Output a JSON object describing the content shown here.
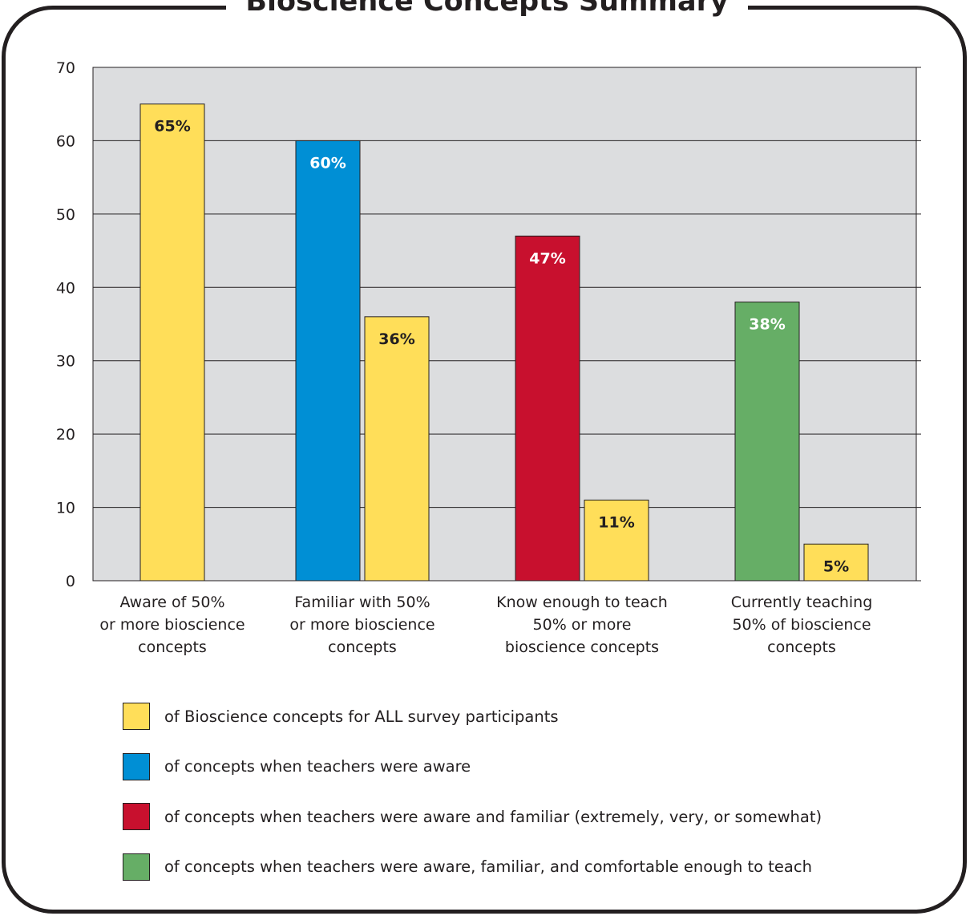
{
  "chart_data": {
    "type": "bar",
    "title": "Bioscience Concepts Summary",
    "xlabel": "",
    "ylabel": "",
    "ylim": [
      0,
      70
    ],
    "yticks": [
      0,
      10,
      20,
      30,
      40,
      50,
      60,
      70
    ],
    "grid": true,
    "categories": [
      [
        "Aware of 50%",
        "or more bioscience",
        "concepts"
      ],
      [
        "Familiar with 50%",
        "or more bioscience",
        "concepts"
      ],
      [
        "Know enough to teach",
        "50% or more",
        "bioscience concepts"
      ],
      [
        "Currently teaching",
        "50% of bioscience",
        "concepts"
      ]
    ],
    "bars": [
      {
        "category": 0,
        "series": 0,
        "value": 65,
        "label": "65%"
      },
      {
        "category": 1,
        "series": 1,
        "value": 60,
        "label": "60%"
      },
      {
        "category": 1,
        "series": 0,
        "value": 36,
        "label": "36%"
      },
      {
        "category": 2,
        "series": 2,
        "value": 47,
        "label": "47%"
      },
      {
        "category": 2,
        "series": 0,
        "value": 11,
        "label": "11%"
      },
      {
        "category": 3,
        "series": 3,
        "value": 38,
        "label": "38%"
      },
      {
        "category": 3,
        "series": 0,
        "value": 5,
        "label": "5%"
      }
    ],
    "series": [
      {
        "name": "of Bioscience concepts for ALL survey participants",
        "color": "#ffde59",
        "label_color": "#231f20"
      },
      {
        "name": "of concepts when teachers were aware",
        "color": "#008fd5",
        "label_color": "#ffffff"
      },
      {
        "name": "of concepts when teachers were aware and familiar (extremely, very, or somewhat)",
        "color": "#c8102e",
        "label_color": "#ffffff"
      },
      {
        "name": "of concepts when teachers were aware, familiar, and comfortable enough to teach",
        "color": "#66ae66",
        "label_color": "#ffffff"
      }
    ],
    "legend_position": "bottom"
  },
  "colors": {
    "plot_background": "#dcdddf",
    "gridline": "#231f20",
    "frame": "#231f20"
  }
}
